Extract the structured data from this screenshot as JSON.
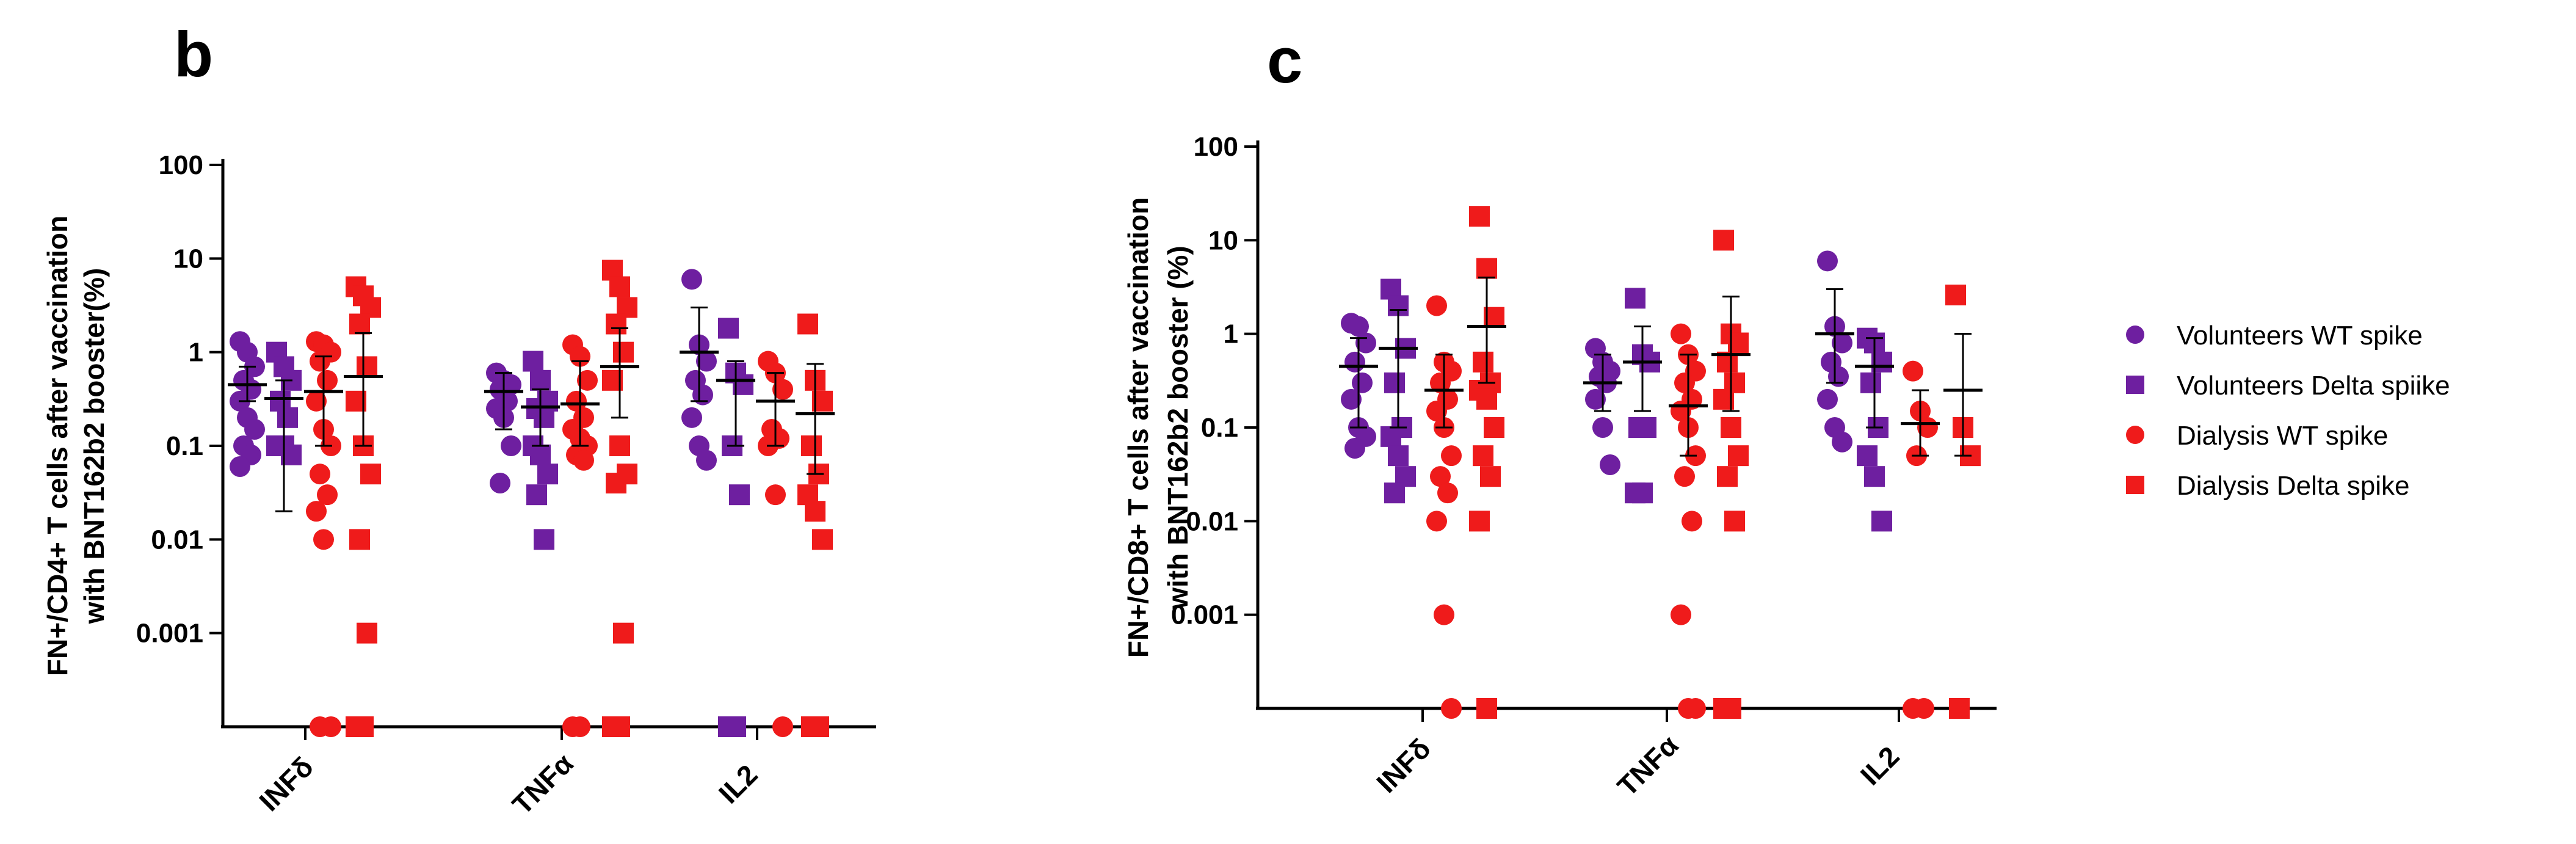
{
  "colors": {
    "purple": "#6e1fa0",
    "red": "#ef1b1b",
    "axis": "#000000"
  },
  "chart_data": [
    {
      "panel": "b",
      "type": "scatter",
      "yscale": "log",
      "ylabel_lines": [
        "FN+/CD4+ T cells after vaccination",
        "with BNT162b2 booster(%)"
      ],
      "ylim": [
        0.0001,
        100
      ],
      "yticks": [
        {
          "value": 100,
          "label": "100"
        },
        {
          "value": 10,
          "label": "10"
        },
        {
          "value": 1,
          "label": "1"
        },
        {
          "value": 0.1,
          "label": "0.1"
        },
        {
          "value": 0.01,
          "label": "0.01"
        },
        {
          "value": 0.001,
          "label": "0.001"
        }
      ],
      "categories": [
        "INFδ",
        "TNFα",
        "IL2"
      ],
      "series": [
        {
          "name": "Volunteers  WT spike",
          "marker": "circle",
          "color": "purple",
          "groups": [
            {
              "points": [
                1.3,
                1.0,
                0.7,
                0.5,
                0.4,
                0.3,
                0.2,
                0.15,
                0.1,
                0.08,
                0.06
              ],
              "mean": 0.45,
              "err": [
                0.3,
                0.7
              ]
            },
            {
              "points": [
                0.6,
                0.5,
                0.45,
                0.4,
                0.3,
                0.25,
                0.2,
                0.1,
                0.04
              ],
              "mean": 0.38,
              "err": [
                0.15,
                0.6
              ]
            },
            {
              "points": [
                6.0,
                1.2,
                0.8,
                0.5,
                0.35,
                0.2,
                0.1,
                0.07
              ],
              "mean": 1.0,
              "err": [
                0.3,
                3.0
              ]
            }
          ]
        },
        {
          "name": "Volunteers  Delta spiike",
          "marker": "square",
          "color": "purple",
          "groups": [
            {
              "points": [
                1.0,
                0.7,
                0.5,
                0.3,
                0.2,
                0.1,
                0.1,
                0.08
              ],
              "mean": 0.32,
              "err": [
                0.02,
                0.5
              ]
            },
            {
              "points": [
                0.8,
                0.5,
                0.3,
                0.25,
                0.2,
                0.1,
                0.08,
                0.05,
                0.03,
                0.01
              ],
              "mean": 0.26,
              "err": [
                0.1,
                0.4
              ]
            },
            {
              "points": [
                1.8,
                0.6,
                0.45,
                0.1,
                0.03,
                0.0001,
                0.0001
              ],
              "mean": 0.5,
              "err": [
                0.1,
                0.8
              ]
            }
          ]
        },
        {
          "name": "Dialysis WT spike",
          "marker": "circle",
          "color": "red",
          "groups": [
            {
              "points": [
                1.3,
                1.2,
                1.0,
                0.8,
                0.5,
                0.3,
                0.15,
                0.1,
                0.05,
                0.03,
                0.02,
                0.01,
                0.0001,
                0.0001
              ],
              "mean": 0.38,
              "err": [
                0.1,
                0.9
              ]
            },
            {
              "points": [
                1.2,
                0.9,
                0.5,
                0.3,
                0.2,
                0.15,
                0.12,
                0.1,
                0.08,
                0.07,
                0.0001,
                0.0001
              ],
              "mean": 0.28,
              "err": [
                0.1,
                0.8
              ]
            },
            {
              "points": [
                0.8,
                0.6,
                0.4,
                0.15,
                0.12,
                0.1,
                0.03,
                0.0001
              ],
              "mean": 0.3,
              "err": [
                0.1,
                0.6
              ]
            }
          ]
        },
        {
          "name": "Dialysis Delta spike",
          "marker": "square",
          "color": "red",
          "groups": [
            {
              "points": [
                5.0,
                4.0,
                3.0,
                2.0,
                0.7,
                0.3,
                0.1,
                0.05,
                0.01,
                0.001,
                0.0001,
                0.0001
              ],
              "mean": 0.55,
              "err": [
                0.1,
                1.6
              ]
            },
            {
              "points": [
                7.5,
                5.0,
                3.0,
                2.0,
                1.0,
                0.5,
                0.1,
                0.05,
                0.04,
                0.001,
                0.0001,
                0.0001
              ],
              "mean": 0.7,
              "err": [
                0.2,
                1.8
              ]
            },
            {
              "points": [
                2.0,
                0.5,
                0.3,
                0.1,
                0.05,
                0.03,
                0.02,
                0.01,
                0.0001,
                0.0001
              ],
              "mean": 0.22,
              "err": [
                0.05,
                0.75
              ]
            }
          ]
        }
      ]
    },
    {
      "panel": "c",
      "type": "scatter",
      "yscale": "log",
      "ylabel_lines": [
        "FN+/CD8+ T cells after vaccination",
        "with BNT162b2 booster (%)"
      ],
      "ylim": [
        0.0001,
        100
      ],
      "yticks": [
        {
          "value": 100,
          "label": "100"
        },
        {
          "value": 10,
          "label": "10"
        },
        {
          "value": 1,
          "label": "1"
        },
        {
          "value": 0.1,
          "label": "0.1"
        },
        {
          "value": 0.01,
          "label": "0.01"
        },
        {
          "value": 0.001,
          "label": "0.001"
        }
      ],
      "categories": [
        "INFδ",
        "TNFα",
        "IL2"
      ],
      "series": [
        {
          "name": "Volunteers  WT spike",
          "marker": "circle",
          "color": "purple",
          "groups": [
            {
              "points": [
                1.3,
                1.2,
                0.8,
                0.5,
                0.3,
                0.2,
                0.1,
                0.08,
                0.06
              ],
              "mean": 0.45,
              "err": [
                0.1,
                0.9
              ]
            },
            {
              "points": [
                0.7,
                0.5,
                0.4,
                0.35,
                0.3,
                0.2,
                0.1,
                0.04
              ],
              "mean": 0.3,
              "err": [
                0.15,
                0.6
              ]
            },
            {
              "points": [
                6.0,
                1.2,
                0.8,
                0.5,
                0.35,
                0.2,
                0.1,
                0.07
              ],
              "mean": 1.0,
              "err": [
                0.3,
                3.0
              ]
            }
          ]
        },
        {
          "name": "Volunteers  Delta spiike",
          "marker": "square",
          "color": "purple",
          "groups": [
            {
              "points": [
                3.0,
                2.0,
                0.7,
                0.3,
                0.1,
                0.08,
                0.05,
                0.03,
                0.02
              ],
              "mean": 0.7,
              "err": [
                0.1,
                1.8
              ]
            },
            {
              "points": [
                2.4,
                0.6,
                0.5,
                0.1,
                0.1,
                0.02,
                0.02
              ],
              "mean": 0.5,
              "err": [
                0.15,
                1.2
              ]
            },
            {
              "points": [
                0.9,
                0.8,
                0.5,
                0.3,
                0.1,
                0.05,
                0.03,
                0.01
              ],
              "mean": 0.45,
              "err": [
                0.1,
                0.9
              ]
            }
          ]
        },
        {
          "name": "Dialysis WT spike",
          "marker": "circle",
          "color": "red",
          "groups": [
            {
              "points": [
                2.0,
                0.5,
                0.4,
                0.3,
                0.2,
                0.15,
                0.1,
                0.05,
                0.03,
                0.02,
                0.01,
                0.001,
                0.0001
              ],
              "mean": 0.25,
              "err": [
                0.1,
                0.6
              ]
            },
            {
              "points": [
                1.0,
                0.6,
                0.4,
                0.3,
                0.2,
                0.15,
                0.1,
                0.05,
                0.03,
                0.01,
                0.001,
                0.0001,
                0.0001
              ],
              "mean": 0.17,
              "err": [
                0.05,
                0.6
              ]
            },
            {
              "points": [
                0.4,
                0.15,
                0.1,
                0.05,
                0.0001,
                0.0001
              ],
              "mean": 0.11,
              "err": [
                0.05,
                0.25
              ]
            }
          ]
        },
        {
          "name": "Dialysis Delta spike",
          "marker": "square",
          "color": "red",
          "groups": [
            {
              "points": [
                18.0,
                5.0,
                1.5,
                0.5,
                0.3,
                0.25,
                0.2,
                0.1,
                0.05,
                0.03,
                0.01,
                0.0001
              ],
              "mean": 1.2,
              "err": [
                0.3,
                4.0
              ]
            },
            {
              "points": [
                10.0,
                1.0,
                0.8,
                0.5,
                0.3,
                0.2,
                0.1,
                0.05,
                0.03,
                0.01,
                0.0001,
                0.0001
              ],
              "mean": 0.6,
              "err": [
                0.15,
                2.5
              ]
            },
            {
              "points": [
                2.6,
                0.1,
                0.05,
                0.0001
              ],
              "mean": 0.25,
              "err": [
                0.05,
                1.0
              ]
            }
          ]
        }
      ]
    }
  ],
  "panels": {
    "b": "b",
    "c": "c"
  },
  "legend": [
    {
      "label": "Volunteers  WT spike",
      "marker": "circle",
      "color": "purple"
    },
    {
      "label": "Volunteers  Delta spiike",
      "marker": "square",
      "color": "purple"
    },
    {
      "label": "Dialysis WT spike",
      "marker": "circle",
      "color": "red"
    },
    {
      "label": "Dialysis Delta spike",
      "marker": "square",
      "color": "red"
    }
  ]
}
